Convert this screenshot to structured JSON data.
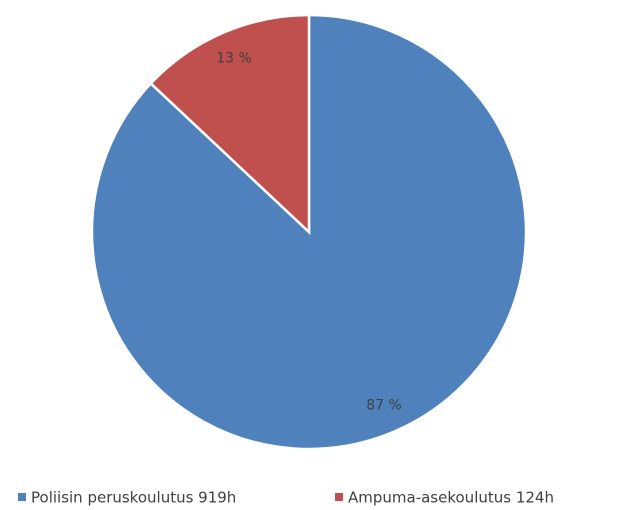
{
  "chart_data": {
    "type": "pie",
    "categories": [
      "Poliisin peruskoulutus 919h",
      "Ampuma-asekoulutus 124h"
    ],
    "values": [
      87,
      13
    ],
    "value_labels": [
      "87 %",
      "13 %"
    ],
    "colors": [
      "#4f81bd",
      "#c0504d"
    ],
    "legend": "bottom"
  }
}
